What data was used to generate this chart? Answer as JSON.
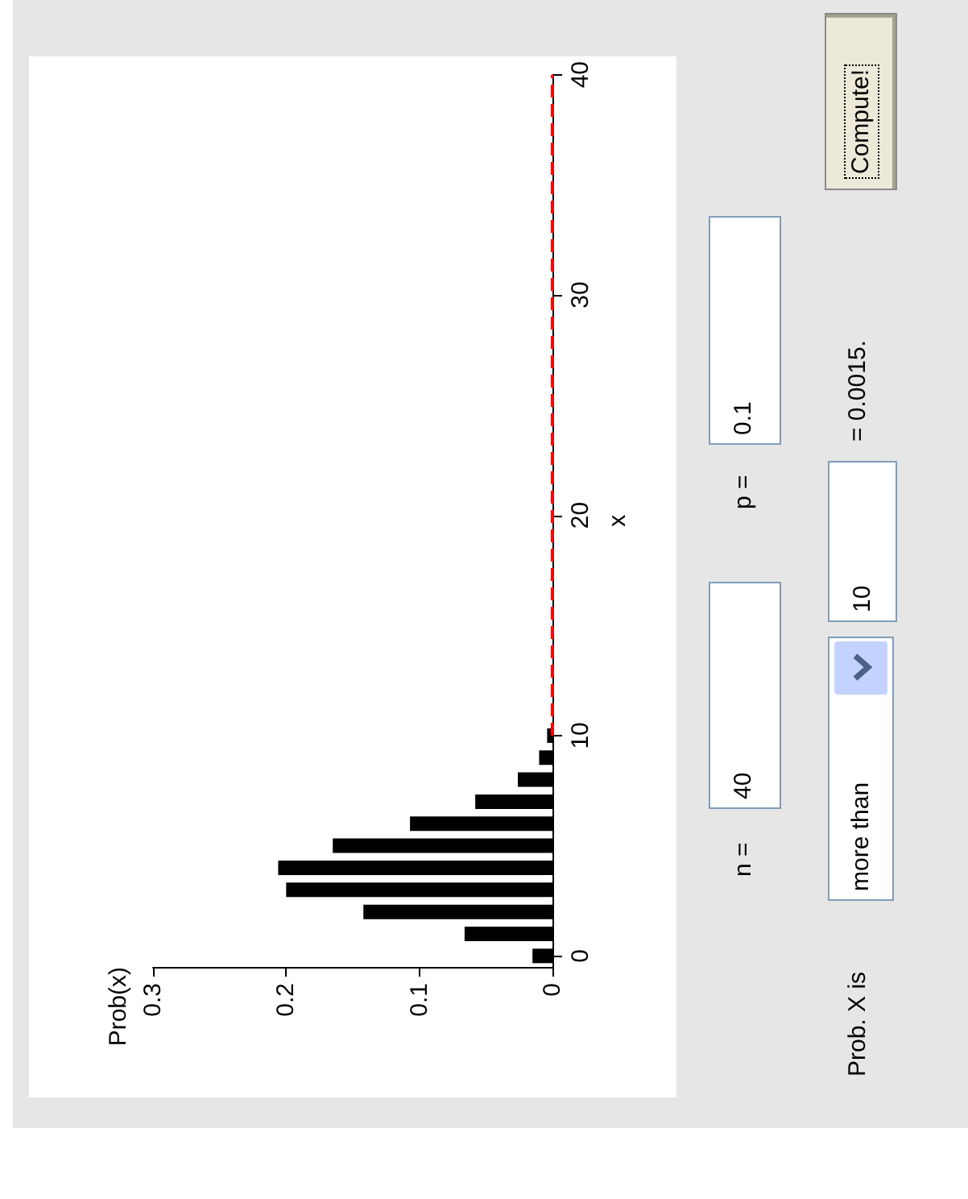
{
  "chart_data": {
    "type": "bar",
    "orientation": "horizontal",
    "ylabel": "x",
    "annotations": [
      "Prob(x)",
      "n =",
      "40",
      "p =",
      "0.1",
      "Prob. X is",
      "more than",
      "10",
      "= 0.0015.",
      "Compute!"
    ],
    "series": [
      {
        "color": "#000000",
        "x": [
          0,
          1,
          2,
          3,
          4,
          5,
          6,
          7,
          8,
          9,
          10
        ],
        "values": [
          0.015,
          0.066,
          0.142,
          0.2,
          0.206,
          0.165,
          0.107,
          0.058,
          0.026,
          0.01,
          0.004
        ]
      },
      {
        "type": "line",
        "color": "#ff0000",
        "line_style": "dashed",
        "marker": "none",
        "x": [
          10,
          40
        ],
        "values": [
          0,
          0
        ]
      }
    ],
    "xlim": [
      0.3,
      0
    ],
    "ylim": [
      -0.5,
      40
    ],
    "xticks": [
      0,
      0.1,
      0.2,
      0.3
    ],
    "yticks": [
      0,
      10,
      20,
      30,
      40
    ],
    "grid": false
  }
}
